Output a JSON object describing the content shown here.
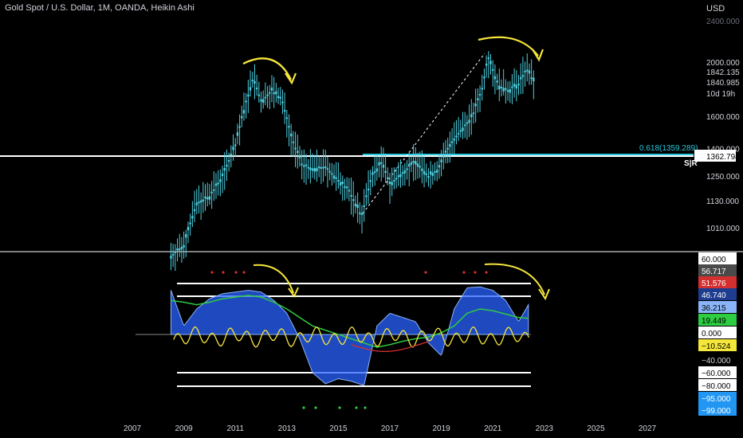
{
  "header": {
    "title": "Gold Spot / U.S. Dollar, 1M, OANDA, Heikin Ashi",
    "currency": "USD"
  },
  "colors": {
    "background": "#000000",
    "candle": "#4dd0e1",
    "hline": "#ffffff",
    "fib": "#26c6da",
    "arrow": "#f5e63a",
    "osc_blue": "#2962ff",
    "osc_teal": "#26a69a",
    "osc_green": "#2ecc40",
    "osc_red": "#d32f2f",
    "osc_yellow": "#f5e63a"
  },
  "price_axis": {
    "top_label": "2400.000",
    "ticks": [
      "2000.000",
      "1600.000",
      "1400.000",
      "1250.000",
      "1130.000",
      "1010.000"
    ],
    "badges": [
      {
        "label": "1842.135",
        "value": 1842.135
      },
      {
        "label": "1840.985",
        "value": 1840.985
      },
      {
        "label": "10d 19h",
        "value": 1795
      },
      {
        "label": "1362.794",
        "value": 1362.794
      }
    ],
    "sr_label": "S|R",
    "fib_label": "0.618(1359.289)"
  },
  "oscillator_axis": {
    "badges": [
      {
        "label": "60.000",
        "value": 60,
        "bg": "#ffffff",
        "fg": "#000000"
      },
      {
        "label": "56.717",
        "value": 56.717,
        "bg": "#4a4a4a",
        "fg": "#ffffff"
      },
      {
        "label": "51.576",
        "value": 51.576,
        "bg": "#d32f2f",
        "fg": "#ffffff"
      },
      {
        "label": "46.740",
        "value": 46.74,
        "bg": "#1e3d8f",
        "fg": "#ffffff"
      },
      {
        "label": "36.215",
        "value": 36.215,
        "bg": "#8ab4f8",
        "fg": "#000000"
      },
      {
        "label": "19.449",
        "value": 19.449,
        "bg": "#2ecc40",
        "fg": "#000000"
      },
      {
        "label": "0.000",
        "value": 0,
        "bg": "#ffffff",
        "fg": "#000000"
      },
      {
        "label": "−10.524",
        "value": -10.524,
        "bg": "#f5e63a",
        "fg": "#000000"
      },
      {
        "label": "−40.000",
        "value": -40,
        "bg": "",
        "fg": "#d1d4dc"
      },
      {
        "label": "−60.000",
        "value": -60,
        "bg": "#ffffff",
        "fg": "#000000"
      },
      {
        "label": "−80.000",
        "value": -80,
        "bg": "#ffffff",
        "fg": "#000000"
      },
      {
        "label": "−95.000",
        "value": -95,
        "bg": "#2196f3",
        "fg": "#ffffff"
      },
      {
        "label": "−99.000",
        "value": -99,
        "bg": "#2196f3",
        "fg": "#ffffff"
      }
    ]
  },
  "chart_data": {
    "type": "line",
    "x_ticks": [
      "2007",
      "2009",
      "2011",
      "2013",
      "2015",
      "2017",
      "2019",
      "2021",
      "2023",
      "2025",
      "2027"
    ],
    "price_series": {
      "x": [
        2008.5,
        2009.0,
        2009.5,
        2010.0,
        2010.5,
        2011.0,
        2011.3,
        2011.7,
        2012.0,
        2012.4,
        2012.8,
        2013.2,
        2013.6,
        2014.0,
        2014.5,
        2015.0,
        2015.4,
        2015.9,
        2016.3,
        2016.7,
        2017.0,
        2017.5,
        2018.0,
        2018.5,
        2018.9,
        2019.3,
        2019.7,
        2020.2,
        2020.6,
        2020.8,
        2021.2,
        2021.6,
        2022.0,
        2022.3,
        2022.6
      ],
      "values": [
        900,
        940,
        1120,
        1150,
        1250,
        1420,
        1620,
        1880,
        1700,
        1780,
        1720,
        1450,
        1310,
        1290,
        1300,
        1230,
        1180,
        1060,
        1250,
        1330,
        1210,
        1270,
        1330,
        1250,
        1290,
        1420,
        1500,
        1600,
        1800,
        2050,
        1820,
        1780,
        1830,
        1950,
        1842
      ]
    },
    "oscillator": {
      "x": [
        2008.5,
        2009.0,
        2009.5,
        2010.0,
        2010.5,
        2011.0,
        2011.5,
        2012.0,
        2012.5,
        2013.0,
        2013.5,
        2014.0,
        2014.5,
        2015.0,
        2015.5,
        2016.0,
        2016.5,
        2017.0,
        2017.5,
        2018.0,
        2018.5,
        2019.0,
        2019.5,
        2020.0,
        2020.5,
        2021.0,
        2021.5,
        2022.0,
        2022.4
      ],
      "main": [
        52,
        10,
        30,
        42,
        48,
        50,
        52,
        50,
        40,
        25,
        -5,
        -45,
        -58,
        -52,
        -55,
        -60,
        10,
        25,
        20,
        15,
        -10,
        -25,
        30,
        55,
        56,
        52,
        40,
        15,
        36
      ],
      "ema": [
        40,
        38,
        35,
        38,
        42,
        44,
        46,
        44,
        38,
        30,
        20,
        10,
        5,
        0,
        -5,
        -10,
        -15,
        -12,
        -8,
        -5,
        -3,
        2,
        10,
        25,
        30,
        28,
        24,
        20,
        19
      ]
    },
    "levels": [
      60,
      51.576,
      0,
      -60,
      -80
    ],
    "annotations": [
      "0.618(1359.289)",
      "S|R"
    ]
  }
}
